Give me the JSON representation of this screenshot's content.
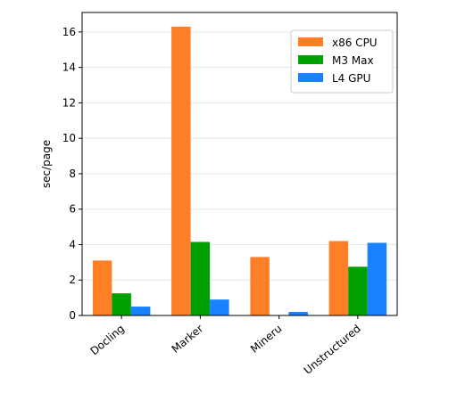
{
  "chart_data": {
    "type": "bar",
    "categories": [
      "Docling",
      "Marker",
      "Mineru",
      "Unstructured"
    ],
    "series": [
      {
        "name": "x86 CPU",
        "color": "#ff7f27",
        "values": [
          3.1,
          16.3,
          3.3,
          4.2
        ]
      },
      {
        "name": "M3 Max",
        "color": "#00a000",
        "values": [
          1.25,
          4.15,
          0,
          2.75
        ]
      },
      {
        "name": "L4 GPU",
        "color": "#1a82ff",
        "values": [
          0.5,
          0.9,
          0.2,
          4.1
        ]
      }
    ],
    "title": "",
    "xlabel": "",
    "ylabel": "sec/page",
    "ylim": [
      0,
      17.1
    ],
    "yticks": [
      0,
      2,
      4,
      6,
      8,
      10,
      12,
      14,
      16
    ],
    "grid": "horizontal",
    "legend": "top-right"
  }
}
